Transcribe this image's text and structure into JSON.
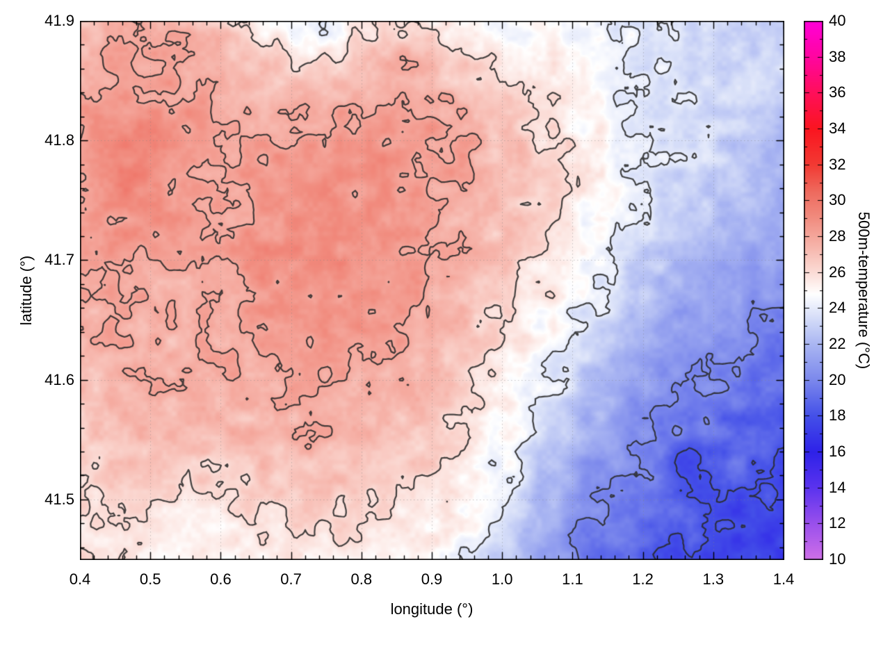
{
  "chart_data": {
    "type": "heatmap",
    "title": "",
    "xlabel": "longitude (°)",
    "ylabel": "latitude (°)",
    "colorbar_label": "500m-temperature (°C)",
    "x_range": [
      0.4,
      1.4
    ],
    "y_range": [
      41.45,
      41.9
    ],
    "grid_on": true,
    "x_ticks": [
      {
        "v": 0.4,
        "label": "0.4"
      },
      {
        "v": 0.5,
        "label": "0.5"
      },
      {
        "v": 0.6,
        "label": "0.6"
      },
      {
        "v": 0.7,
        "label": "0.7"
      },
      {
        "v": 0.8,
        "label": "0.8"
      },
      {
        "v": 0.9,
        "label": "0.9"
      },
      {
        "v": 1.0,
        "label": "1.0"
      },
      {
        "v": 1.1,
        "label": "1.1"
      },
      {
        "v": 1.2,
        "label": "1.2"
      },
      {
        "v": 1.3,
        "label": "1.3"
      },
      {
        "v": 1.4,
        "label": "1.4"
      }
    ],
    "y_ticks": [
      {
        "v": 41.5,
        "label": "41.5"
      },
      {
        "v": 41.6,
        "label": "41.6"
      },
      {
        "v": 41.7,
        "label": "41.7"
      },
      {
        "v": 41.8,
        "label": "41.8"
      },
      {
        "v": 41.9,
        "label": "41.9"
      }
    ],
    "colorbar_range": [
      10,
      40
    ],
    "colorbar_ticks": [
      {
        "v": 10,
        "label": "10"
      },
      {
        "v": 12,
        "label": "12"
      },
      {
        "v": 14,
        "label": "14"
      },
      {
        "v": 16,
        "label": "16"
      },
      {
        "v": 18,
        "label": "18"
      },
      {
        "v": 20,
        "label": "20"
      },
      {
        "v": 22,
        "label": "22"
      },
      {
        "v": 24,
        "label": "24"
      },
      {
        "v": 26,
        "label": "26"
      },
      {
        "v": 28,
        "label": "28"
      },
      {
        "v": 30,
        "label": "30"
      },
      {
        "v": 32,
        "label": "32"
      },
      {
        "v": 34,
        "label": "34"
      },
      {
        "v": 36,
        "label": "36"
      },
      {
        "v": 38,
        "label": "38"
      },
      {
        "v": 40,
        "label": "40"
      }
    ],
    "palette": [
      {
        "v": 10.0,
        "c": "#cf6fe8"
      },
      {
        "v": 12.0,
        "c": "#9a50ec"
      },
      {
        "v": 14.0,
        "c": "#5b33ee"
      },
      {
        "v": 16.0,
        "c": "#2e22e8"
      },
      {
        "v": 18.0,
        "c": "#4450e8"
      },
      {
        "v": 20.0,
        "c": "#7b88ec"
      },
      {
        "v": 22.0,
        "c": "#aab6f2"
      },
      {
        "v": 23.5,
        "c": "#d6def8"
      },
      {
        "v": 24.8,
        "c": "#ffffff"
      },
      {
        "v": 26.0,
        "c": "#fbdcd6"
      },
      {
        "v": 27.5,
        "c": "#f6b3a9"
      },
      {
        "v": 29.0,
        "c": "#f18d80"
      },
      {
        "v": 30.5,
        "c": "#ee6a5e"
      },
      {
        "v": 32.0,
        "c": "#f23a33"
      },
      {
        "v": 34.0,
        "c": "#fa1520"
      },
      {
        "v": 36.0,
        "c": "#ff0f5a"
      },
      {
        "v": 38.0,
        "c": "#ff05a0"
      },
      {
        "v": 40.0,
        "c": "#ff00d8"
      }
    ],
    "contour_levels": [
      18,
      20,
      24,
      26,
      28
    ],
    "contour_color": "#2a2a2a",
    "grid_line_color": "#b0b0b0",
    "grid": {
      "rows_order": "north-to-south",
      "lon": [
        0.4,
        0.4667,
        0.5333,
        0.6,
        0.6667,
        0.7333,
        0.8,
        0.8667,
        0.9333,
        1.0,
        1.0667,
        1.1333,
        1.2,
        1.2667,
        1.3333,
        1.4
      ],
      "lat": [
        41.9,
        41.8625,
        41.825,
        41.7875,
        41.75,
        41.7125,
        41.675,
        41.6375,
        41.6,
        41.5625,
        41.525,
        41.4875,
        41.45
      ],
      "values": [
        [
          27.2,
          27.5,
          27.3,
          26.8,
          25.0,
          23.8,
          25.5,
          26.3,
          25.2,
          24.6,
          25.0,
          24.4,
          24.2,
          23.6,
          23.0,
          22.8
        ],
        [
          27.6,
          28.2,
          28.0,
          27.4,
          26.6,
          26.2,
          26.8,
          27.6,
          26.6,
          25.6,
          25.2,
          24.6,
          24.0,
          23.4,
          23.2,
          23.0
        ],
        [
          28.2,
          28.6,
          28.4,
          27.8,
          27.4,
          27.6,
          28.0,
          28.4,
          27.8,
          26.8,
          25.8,
          24.8,
          24.0,
          23.6,
          23.2,
          22.6
        ],
        [
          28.6,
          29.2,
          28.8,
          28.2,
          28.4,
          28.6,
          28.8,
          28.6,
          28.2,
          27.2,
          26.2,
          25.2,
          24.2,
          23.4,
          22.8,
          22.2
        ],
        [
          28.4,
          29.0,
          28.6,
          28.0,
          28.6,
          28.8,
          28.6,
          28.4,
          27.8,
          27.0,
          26.0,
          25.0,
          23.8,
          22.8,
          22.2,
          21.6
        ],
        [
          28.2,
          28.4,
          28.0,
          28.2,
          28.8,
          29.0,
          28.8,
          28.4,
          27.6,
          26.8,
          25.8,
          24.6,
          23.2,
          22.2,
          21.6,
          21.0
        ],
        [
          27.8,
          28.0,
          27.6,
          28.0,
          28.6,
          28.8,
          28.6,
          28.2,
          27.4,
          26.4,
          25.4,
          24.0,
          22.6,
          21.6,
          21.0,
          20.4
        ],
        [
          27.6,
          27.8,
          27.4,
          27.8,
          28.2,
          28.4,
          28.4,
          27.8,
          27.0,
          26.0,
          24.8,
          23.2,
          21.8,
          20.8,
          20.2,
          19.8
        ],
        [
          27.2,
          27.6,
          27.8,
          27.6,
          27.8,
          28.2,
          28.0,
          27.4,
          26.6,
          25.4,
          24.0,
          22.4,
          21.0,
          20.0,
          19.6,
          19.2
        ],
        [
          26.8,
          27.2,
          27.4,
          27.2,
          27.4,
          27.8,
          27.6,
          27.0,
          26.2,
          25.0,
          23.2,
          21.6,
          20.2,
          19.8,
          18.8,
          18.6
        ],
        [
          26.4,
          26.8,
          26.6,
          26.4,
          26.8,
          27.2,
          27.0,
          26.6,
          25.8,
          24.4,
          22.4,
          20.8,
          20.2,
          17.6,
          19.0,
          18.0
        ],
        [
          26.0,
          26.2,
          25.8,
          25.6,
          26.0,
          26.4,
          26.2,
          25.8,
          25.2,
          23.6,
          21.6,
          20.0,
          19.0,
          18.6,
          17.8,
          17.4
        ],
        [
          26.0,
          25.8,
          25.4,
          25.2,
          25.4,
          25.6,
          25.6,
          25.2,
          24.6,
          23.0,
          21.0,
          19.4,
          18.4,
          17.8,
          17.4,
          17.2
        ]
      ]
    }
  }
}
